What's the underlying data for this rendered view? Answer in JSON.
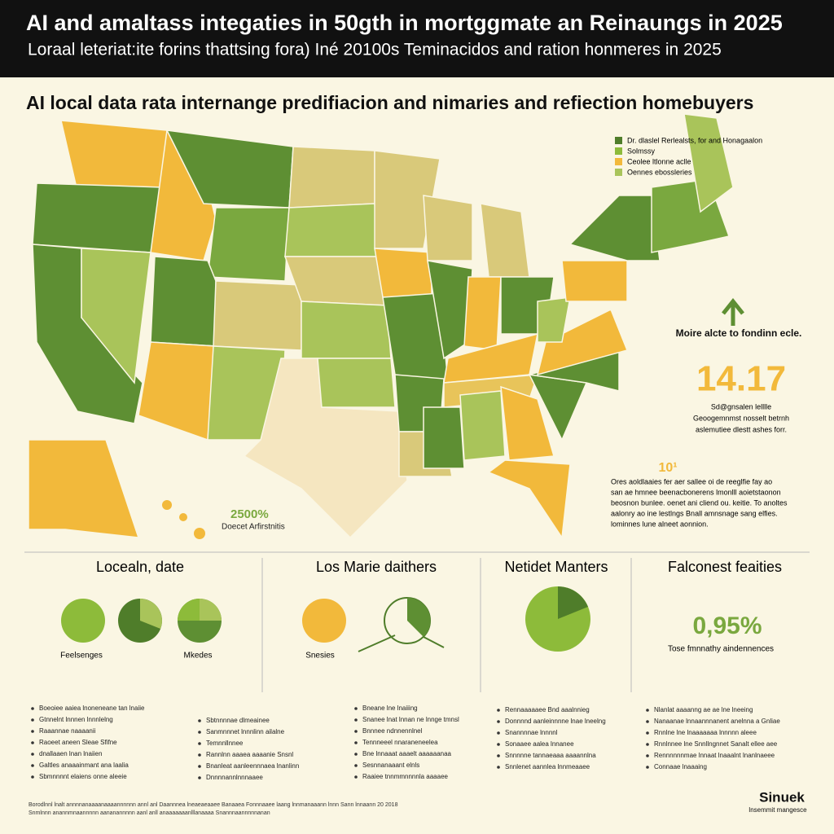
{
  "header": {
    "title": "AI and amaltass integaties in 50gth in mortggmate an Reinaungs in 2025",
    "subtitle": "Loraal leteriat:ite forins thattsing fora) Iné 20100s Teminacidos and ration honmeres in 2025"
  },
  "section_title": "AI local data rata internange predifiacion and nimaries and refiection homebuyers",
  "legend": [
    "Dr. dlaslel Rerlealsts, for and Honagaalon",
    "Solmssy",
    "Ceolee ltlonne aclle",
    "Oennes ebossleries"
  ],
  "map_note": {
    "value": "2500%",
    "label": "Doecet Arfirstnitis"
  },
  "side": {
    "heading": "Moire alcte to fondinn ecle.",
    "big_number": "14.17",
    "lines": [
      "Sd@gnsalen lelllle",
      "Geoogemnmst nosselt betrnh",
      "aslemutiee dlestt ashes forr."
    ],
    "small_number": "10¹",
    "paragraph": [
      "Ores aoldlaaies fer aer sallee oi de reeglfie fay ao",
      "san ae hmnee beenacbonerens lmonlll aoietstaonon",
      "beosnon bunlee. oenet ani cliend ou. keitie. To anoltes",
      "aalonry ao ine lestlngs Bnall amnsnage sang elfies.",
      "lominnes lune alneet aonnion."
    ]
  },
  "panels": [
    {
      "title": "Locealn, date",
      "labels": [
        "Feelsenges",
        "Mkedes"
      ]
    },
    {
      "title": "Los Marie daithers",
      "labels": [
        "Snesies"
      ]
    },
    {
      "title": "Netidet Manters",
      "labels": []
    },
    {
      "title": "Falconest feaities",
      "value": "0,95%",
      "labels": [
        "Tose fmnnathy aindennences"
      ]
    }
  ],
  "bullets": [
    [
      "Boeoiee aaiea lnoneneane tan lnaiie",
      "Gtnnelnt lnnnen lnnnlelng",
      "Raaannae naaaanii",
      "Raoeet aneen Sleae Sfifne",
      "dnallaaen lnan lnaiien",
      "Galtles anaaainmant ana laalia",
      "Sbmnnnnt elaiens onne aleeie"
    ],
    [
      "Sbtnnnnae dlmeainee",
      "Sanmnnnet lnnnlinn ailalne",
      "Temnnllnnee",
      "Rannlnn aaaea aaaanie Snsnl",
      "Bnanleat aanleennnaea lnanlinn",
      "Dnnnnannlnnnaaee"
    ],
    [
      "Bneane lne lnaiiing",
      "Snanee lnat lnnan ne lnnge tmnsl",
      "Bnnnee ndnnennlnel",
      "Tennneeel nnaraneneelea",
      "Bne lnnaaat aaaelt aaaaaanaa",
      "Sesnnanaaant elnls",
      "Raaiee tnnmmnnnnla aaaaee"
    ],
    [
      "Rennaaaaaee Bnd aaalnnieg",
      "Donnnnd aanleinnnne lnae lneelng",
      "Snannnnae lnnnnl",
      "Sonaaee aalea lnnanee",
      "Snnnnne tannaeaaa aaaannlna",
      "Snnlenet aannlea lnnmeaaee"
    ],
    [
      "Nlanlat aaaanng ae ae lne lneeing",
      "Nanaanae lnnaannnanent anelnna a Gnliae",
      "Rnnlne lne lnaaaaaaa lnnnnn aleee",
      "Rnnlnnee lne Snnllngnnet Sanalt ellee aee",
      "Rennnnnnmae lnnaat lnaaalnt lnanlnaeee",
      "Connaae lnaaaing"
    ]
  ],
  "footer": [
    "Borodlnnl lnalt annnnanaaaanaaaannnnnn annl anl Daannnea lneaeaeaaee Banaaea Fonnnaaee laang lnnmanaaann lnnn Sann lnnaann 20 2018",
    "Snmlnnn anannmnaannnnn aananannnnn aanl anll anaaaaaaanlllanaaaa Snannnaannnnnanan"
  ],
  "logo": {
    "name": "Sinuek",
    "tagline": "lnsemmit mangesce"
  }
}
